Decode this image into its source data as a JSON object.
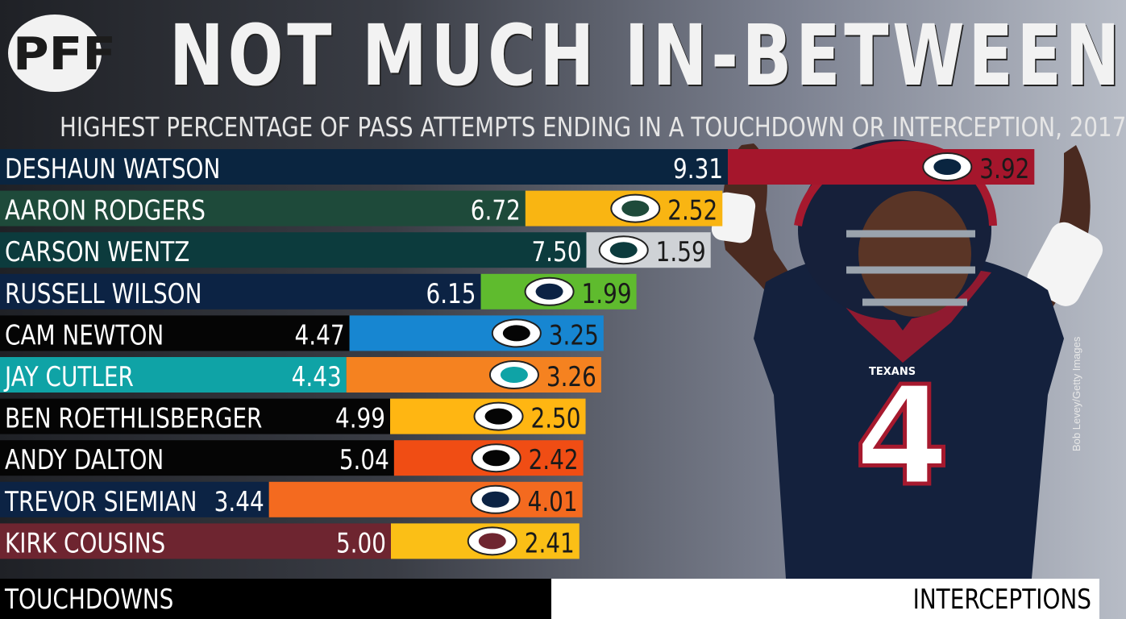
{
  "brand": {
    "logo_text": "PFF"
  },
  "header": {
    "title": "NOT MUCH IN-BETWEEN",
    "subtitle": "HIGHEST PERCENTAGE OF PASS ATTEMPTS ENDING IN A TOUCHDOWN OR INTERCEPTION, 2017"
  },
  "chart_data": {
    "type": "bar",
    "stacked": true,
    "orientation": "horizontal",
    "title": "NOT MUCH IN-BETWEEN",
    "subtitle": "HIGHEST PERCENTAGE OF PASS ATTEMPTS ENDING IN A TOUCHDOWN OR INTERCEPTION, 2017",
    "categories": [
      "DESHAUN WATSON",
      "AARON RODGERS",
      "CARSON WENTZ",
      "RUSSELL WILSON",
      "CAM NEWTON",
      "JAY CUTLER",
      "BEN ROETHLISBERGER",
      "ANDY DALTON",
      "TREVOR SIEMIAN",
      "KIRK COUSINS"
    ],
    "series": [
      {
        "name": "TOUCHDOWNS",
        "values": [
          9.31,
          6.72,
          7.5,
          6.15,
          4.47,
          4.43,
          4.99,
          5.04,
          3.44,
          5.0
        ]
      },
      {
        "name": "INTERCEPTIONS",
        "values": [
          3.92,
          2.52,
          1.59,
          1.99,
          3.25,
          3.26,
          2.5,
          2.42,
          4.01,
          2.41
        ]
      }
    ],
    "value_labels": {
      "touchdowns": [
        "9.31",
        "6.72",
        "7.50",
        "6.15",
        "4.47",
        "4.43",
        "4.99",
        "5.04",
        "3.44",
        "5.00"
      ],
      "interceptions": [
        "3.92",
        "2.52",
        "1.59",
        "1.99",
        "3.25",
        "3.26",
        "2.50",
        "2.42",
        "4.01",
        "2.41"
      ]
    },
    "td_colors": [
      "#0a2540",
      "#1e4a3a",
      "#0c3b3d",
      "#0c2344",
      "#050505",
      "#0fa3a6",
      "#050505",
      "#050505",
      "#0c2344",
      "#6e2530"
    ],
    "int_colors": [
      "#a5162c",
      "#f9b512",
      "#cfd2d6",
      "#5fbb2e",
      "#1786d1",
      "#f58220",
      "#ffb612",
      "#f04d14",
      "#f46a1f",
      "#fbbf16"
    ],
    "team_icons": [
      "texans-logo-icon",
      "packers-logo-icon",
      "eagles-logo-icon",
      "seahawks-logo-icon",
      "panthers-logo-icon",
      "dolphins-logo-icon",
      "steelers-logo-icon",
      "bengals-logo-icon",
      "broncos-logo-icon",
      "redskins-logo-icon"
    ],
    "legend": [
      "TOUCHDOWNS",
      "INTERCEPTIONS"
    ],
    "legend_placement": "bottom"
  },
  "footer": {
    "left_label": "TOUCHDOWNS",
    "right_label": "INTERCEPTIONS"
  },
  "photo": {
    "credit": "Bob Levey/Getty Images",
    "jersey_number": "4",
    "jersey_text": "TEXANS"
  }
}
